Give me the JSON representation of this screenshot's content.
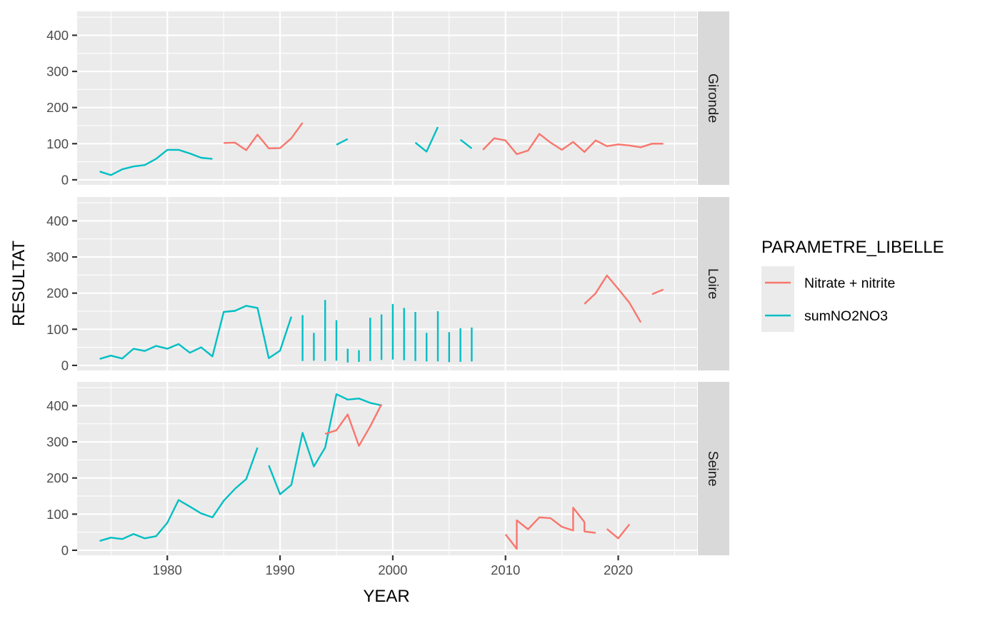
{
  "chart_data": {
    "type": "line",
    "xlabel": "YEAR",
    "ylabel": "RESULTAT",
    "xlim": [
      1972,
      2027
    ],
    "ylim": [
      -14,
      466
    ],
    "x_ticks": [
      1980,
      1990,
      2000,
      2010,
      2020
    ],
    "y_ticks": [
      0,
      100,
      200,
      300,
      400
    ],
    "grid": true,
    "colors": {
      "Nitrate + nitrite": "#F8766D",
      "sumNO2NO3": "#00BFC4"
    },
    "legend": {
      "title": "PARAMETRE_LIBELLE",
      "position": "right",
      "entries": [
        "Nitrate + nitrite",
        "sumNO2NO3"
      ]
    },
    "facets": [
      "Gironde",
      "Loire",
      "Seine"
    ],
    "panels": [
      {
        "facet": "Gironde",
        "series": [
          {
            "name": "sumNO2NO3",
            "segments": [
              [
                [
                  1974,
                  23
                ],
                [
                  1975,
                  13
                ],
                [
                  1976,
                  29
                ],
                [
                  1977,
                  37
                ],
                [
                  1978,
                  41
                ],
                [
                  1979,
                  58
                ],
                [
                  1980,
                  83
                ],
                [
                  1981,
                  83
                ],
                [
                  1982,
                  73
                ],
                [
                  1983,
                  61
                ],
                [
                  1984,
                  58
                ]
              ],
              [
                [
                  1995,
                  97
                ],
                [
                  1996,
                  113
                ]
              ],
              [
                [
                  2002,
                  103
                ],
                [
                  2003,
                  78
                ],
                [
                  2004,
                  146
                ]
              ],
              [
                [
                  2006,
                  111
                ],
                [
                  2007,
                  87
                ]
              ]
            ]
          },
          {
            "name": "Nitrate + nitrite",
            "segments": [
              [
                [
                  1985,
                  102
                ],
                [
                  1986,
                  103
                ],
                [
                  1987,
                  82
                ],
                [
                  1988,
                  125
                ],
                [
                  1989,
                  87
                ],
                [
                  1990,
                  88
                ],
                [
                  1991,
                  115
                ],
                [
                  1992,
                  158
                ]
              ],
              [
                [
                  2008,
                  83
                ],
                [
                  2009,
                  115
                ],
                [
                  2010,
                  109
                ],
                [
                  2011,
                  71
                ],
                [
                  2012,
                  81
                ],
                [
                  2013,
                  127
                ],
                [
                  2014,
                  103
                ],
                [
                  2015,
                  83
                ],
                [
                  2016,
                  105
                ],
                [
                  2017,
                  77
                ],
                [
                  2018,
                  109
                ],
                [
                  2019,
                  93
                ],
                [
                  2020,
                  98
                ],
                [
                  2021,
                  95
                ],
                [
                  2022,
                  90
                ],
                [
                  2023,
                  100
                ],
                [
                  2024,
                  100
                ]
              ]
            ]
          }
        ]
      },
      {
        "facet": "Loire",
        "series": [
          {
            "name": "sumNO2NO3",
            "segments": [
              [
                [
                  1974,
                  18
                ],
                [
                  1975,
                  27
                ],
                [
                  1976,
                  19
                ],
                [
                  1977,
                  46
                ],
                [
                  1978,
                  40
                ],
                [
                  1979,
                  54
                ],
                [
                  1980,
                  46
                ],
                [
                  1981,
                  59
                ],
                [
                  1982,
                  35
                ],
                [
                  1983,
                  50
                ],
                [
                  1984,
                  25
                ],
                [
                  1985,
                  148
                ],
                [
                  1986,
                  151
                ],
                [
                  1987,
                  165
                ],
                [
                  1988,
                  159
                ],
                [
                  1989,
                  20
                ],
                [
                  1990,
                  41
                ],
                [
                  1991,
                  135
                ]
              ],
              [
                [
                  1992,
                  12
                ],
                [
                  1992,
                  139
                ]
              ],
              [
                [
                  1993,
                  13
                ],
                [
                  1993,
                  90
                ]
              ],
              [
                [
                  1994,
                  12
                ],
                [
                  1994,
                  181
                ]
              ],
              [
                [
                  1995,
                  13
                ],
                [
                  1995,
                  125
                ]
              ],
              [
                [
                  1996,
                  8
                ],
                [
                  1996,
                  46
                ]
              ],
              [
                [
                  1997,
                  10
                ],
                [
                  1997,
                  42
                ]
              ],
              [
                [
                  1998,
                  12
                ],
                [
                  1998,
                  132
                ]
              ],
              [
                [
                  1999,
                  15
                ],
                [
                  1999,
                  141
                ]
              ],
              [
                [
                  2000,
                  16
                ],
                [
                  2000,
                  170
                ]
              ],
              [
                [
                  2001,
                  14
                ],
                [
                  2001,
                  159
                ]
              ],
              [
                [
                  2002,
                  12
                ],
                [
                  2002,
                  148
                ]
              ],
              [
                [
                  2003,
                  11
                ],
                [
                  2003,
                  90
                ]
              ],
              [
                [
                  2004,
                  11
                ],
                [
                  2004,
                  150
                ]
              ],
              [
                [
                  2005,
                  9
                ],
                [
                  2005,
                  92
                ]
              ],
              [
                [
                  2006,
                  10
                ],
                [
                  2006,
                  103
                ]
              ],
              [
                [
                  2007,
                  11
                ],
                [
                  2007,
                  105
                ]
              ]
            ]
          },
          {
            "name": "Nitrate + nitrite",
            "segments": [
              [
                [
                  2017,
                  170
                ],
                [
                  2018,
                  200
                ],
                [
                  2019,
                  249
                ],
                [
                  2020,
                  212
                ],
                [
                  2021,
                  173
                ],
                [
                  2022,
                  119
                ]
              ],
              [
                [
                  2023,
                  197
                ],
                [
                  2024,
                  210
                ]
              ]
            ]
          }
        ]
      },
      {
        "facet": "Seine",
        "series": [
          {
            "name": "sumNO2NO3",
            "segments": [
              [
                [
                  1974,
                  26
                ],
                [
                  1975,
                  35
                ],
                [
                  1976,
                  31
                ],
                [
                  1977,
                  45
                ],
                [
                  1978,
                  33
                ],
                [
                  1979,
                  39
                ],
                [
                  1980,
                  76
                ],
                [
                  1981,
                  139
                ],
                [
                  1982,
                  121
                ],
                [
                  1983,
                  102
                ],
                [
                  1984,
                  91
                ],
                [
                  1985,
                  137
                ],
                [
                  1986,
                  170
                ],
                [
                  1987,
                  197
                ],
                [
                  1988,
                  284
                ]
              ],
              [
                [
                  1989,
                  235
                ],
                [
                  1990,
                  155
                ],
                [
                  1991,
                  181
                ],
                [
                  1992,
                  325
                ],
                [
                  1993,
                  232
                ],
                [
                  1994,
                  284
                ],
                [
                  1995,
                  432
                ],
                [
                  1996,
                  417
                ],
                [
                  1997,
                  420
                ],
                [
                  1998,
                  408
                ],
                [
                  1999,
                  401
                ]
              ]
            ]
          },
          {
            "name": "Nitrate + nitrite",
            "segments": [
              [
                [
                  1994,
                  322
                ],
                [
                  1995,
                  332
                ],
                [
                  1996,
                  376
                ],
                [
                  1997,
                  289
                ],
                [
                  1998,
                  343
                ],
                [
                  1999,
                  404
                ]
              ],
              [
                [
                  2010,
                  44
                ],
                [
                  2011,
                  4
                ],
                [
                  2011,
                  83
                ],
                [
                  2012,
                  58
                ],
                [
                  2013,
                  91
                ],
                [
                  2014,
                  89
                ],
                [
                  2015,
                  65
                ],
                [
                  2016,
                  55
                ],
                [
                  2016,
                  118
                ],
                [
                  2017,
                  78
                ],
                [
                  2017,
                  52
                ],
                [
                  2018,
                  48
                ]
              ],
              [
                [
                  2019,
                  59
                ],
                [
                  2020,
                  33
                ],
                [
                  2021,
                  72
                ]
              ]
            ]
          }
        ]
      }
    ]
  }
}
